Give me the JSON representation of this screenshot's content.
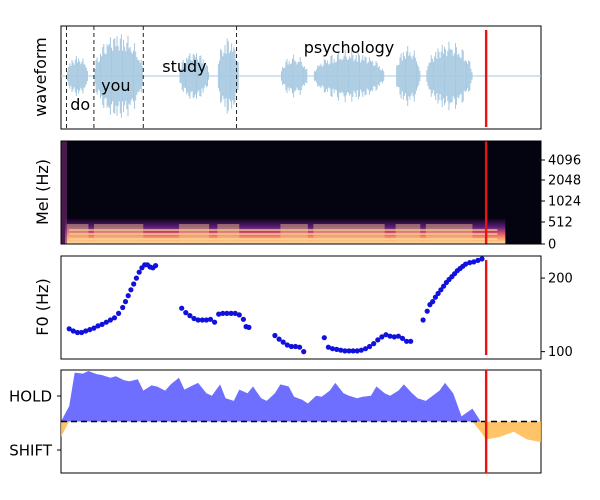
{
  "chart_data": [
    {
      "type": "line",
      "panel": "waveform",
      "ylabel": "waveform",
      "words": [
        {
          "text": "do",
          "t": 0.07
        },
        {
          "text": "you",
          "t": 0.2
        },
        {
          "text": "study",
          "t": 0.45
        },
        {
          "text": "psychology",
          "t": 1.05
        }
      ],
      "word_boundaries": [
        0.02,
        0.12,
        0.3,
        0.64
      ],
      "segments": [
        {
          "start": 0.02,
          "end": 0.1,
          "amp": 0.45
        },
        {
          "start": 0.12,
          "end": 0.3,
          "amp": 0.95
        },
        {
          "start": 0.43,
          "end": 0.54,
          "amp": 0.55
        },
        {
          "start": 0.57,
          "end": 0.65,
          "amp": 0.85
        },
        {
          "start": 0.8,
          "end": 0.9,
          "amp": 0.45
        },
        {
          "start": 0.92,
          "end": 1.18,
          "amp": 0.55
        },
        {
          "start": 1.22,
          "end": 1.31,
          "amp": 0.65
        },
        {
          "start": 1.33,
          "end": 1.5,
          "amp": 0.75
        }
      ],
      "xlim": [
        0,
        1.75
      ],
      "current_time": 1.55,
      "color": "#a6c8e0",
      "marker_color": "#ee1111"
    },
    {
      "type": "heatmap",
      "panel": "mel",
      "ylabel": "Mel (Hz)",
      "yticks": [
        "0",
        "512",
        "1024",
        "2048",
        "4096"
      ],
      "xlim": [
        0,
        1.75
      ],
      "audio_end": 1.62,
      "current_time": 1.55
    },
    {
      "type": "scatter",
      "panel": "f0",
      "ylabel": "F0 (Hz)",
      "yticks": [
        100,
        200
      ],
      "ylim": [
        90,
        230
      ],
      "xlim": [
        0,
        1.75
      ],
      "color": "#1111dd",
      "current_time": 1.55,
      "points": [
        [
          0.03,
          131
        ],
        [
          0.045,
          128
        ],
        [
          0.06,
          126
        ],
        [
          0.075,
          126
        ],
        [
          0.09,
          128
        ],
        [
          0.105,
          130
        ],
        [
          0.12,
          132
        ],
        [
          0.135,
          135
        ],
        [
          0.15,
          137
        ],
        [
          0.165,
          140
        ],
        [
          0.18,
          143
        ],
        [
          0.195,
          146
        ],
        [
          0.21,
          152
        ],
        [
          0.225,
          160
        ],
        [
          0.235,
          168
        ],
        [
          0.245,
          176
        ],
        [
          0.255,
          184
        ],
        [
          0.265,
          192
        ],
        [
          0.275,
          200
        ],
        [
          0.285,
          208
        ],
        [
          0.295,
          214
        ],
        [
          0.305,
          218
        ],
        [
          0.315,
          218
        ],
        [
          0.325,
          215
        ],
        [
          0.335,
          214
        ],
        [
          0.345,
          217
        ],
        [
          0.44,
          159
        ],
        [
          0.455,
          153
        ],
        [
          0.47,
          149
        ],
        [
          0.485,
          145
        ],
        [
          0.5,
          143
        ],
        [
          0.515,
          143
        ],
        [
          0.53,
          143
        ],
        [
          0.545,
          144
        ],
        [
          0.56,
          140
        ],
        [
          0.575,
          151
        ],
        [
          0.59,
          152
        ],
        [
          0.605,
          152
        ],
        [
          0.62,
          152
        ],
        [
          0.635,
          152
        ],
        [
          0.65,
          150
        ],
        [
          0.665,
          144
        ],
        [
          0.675,
          134
        ],
        [
          0.685,
          133
        ],
        [
          0.78,
          122
        ],
        [
          0.795,
          117
        ],
        [
          0.81,
          113
        ],
        [
          0.825,
          109
        ],
        [
          0.84,
          107
        ],
        [
          0.855,
          107
        ],
        [
          0.87,
          106
        ],
        [
          0.885,
          100
        ],
        [
          0.96,
          119
        ],
        [
          0.975,
          106
        ],
        [
          0.99,
          104
        ],
        [
          1.005,
          103
        ],
        [
          1.02,
          102
        ],
        [
          1.035,
          101
        ],
        [
          1.05,
          101
        ],
        [
          1.065,
          101
        ],
        [
          1.08,
          101
        ],
        [
          1.095,
          102
        ],
        [
          1.11,
          104
        ],
        [
          1.125,
          107
        ],
        [
          1.14,
          111
        ],
        [
          1.155,
          116
        ],
        [
          1.17,
          120
        ],
        [
          1.185,
          123
        ],
        [
          1.2,
          121
        ],
        [
          1.215,
          120
        ],
        [
          1.23,
          121
        ],
        [
          1.245,
          118
        ],
        [
          1.26,
          114
        ],
        [
          1.275,
          114
        ],
        [
          1.32,
          143
        ],
        [
          1.335,
          155
        ],
        [
          1.345,
          164
        ],
        [
          1.355,
          168
        ],
        [
          1.365,
          174
        ],
        [
          1.375,
          179
        ],
        [
          1.385,
          184
        ],
        [
          1.395,
          189
        ],
        [
          1.405,
          194
        ],
        [
          1.415,
          198
        ],
        [
          1.425,
          202
        ],
        [
          1.435,
          206
        ],
        [
          1.445,
          210
        ],
        [
          1.455,
          213
        ],
        [
          1.465,
          216
        ],
        [
          1.475,
          219
        ],
        [
          1.49,
          221
        ],
        [
          1.505,
          222
        ],
        [
          1.52,
          224
        ],
        [
          1.535,
          226
        ]
      ]
    },
    {
      "type": "area",
      "panel": "turn",
      "yticks": [
        "HOLD",
        "SHIFT"
      ],
      "ylim": [
        -1,
        1
      ],
      "xlim": [
        0,
        1.75
      ],
      "baseline": 0,
      "current_time": 1.55,
      "hold_color": "#5555ff",
      "shift_color": "#ffb84d",
      "x": [
        0.0,
        0.03,
        0.05,
        0.08,
        0.1,
        0.13,
        0.15,
        0.18,
        0.2,
        0.23,
        0.25,
        0.28,
        0.3,
        0.33,
        0.35,
        0.38,
        0.4,
        0.43,
        0.45,
        0.48,
        0.5,
        0.53,
        0.55,
        0.58,
        0.6,
        0.63,
        0.65,
        0.68,
        0.7,
        0.73,
        0.75,
        0.78,
        0.8,
        0.83,
        0.85,
        0.88,
        0.9,
        0.93,
        0.95,
        0.98,
        1.0,
        1.03,
        1.05,
        1.08,
        1.1,
        1.13,
        1.15,
        1.18,
        1.2,
        1.23,
        1.25,
        1.28,
        1.3,
        1.33,
        1.35,
        1.38,
        1.4,
        1.43,
        1.46,
        1.5,
        1.53,
        1.55,
        1.6,
        1.65,
        1.7,
        1.75
      ],
      "y": [
        -0.3,
        0.3,
        0.95,
        0.93,
        0.98,
        0.92,
        0.9,
        0.85,
        0.88,
        0.8,
        0.78,
        0.82,
        0.6,
        0.7,
        0.68,
        0.6,
        0.72,
        0.85,
        0.62,
        0.7,
        0.75,
        0.55,
        0.5,
        0.72,
        0.45,
        0.4,
        0.62,
        0.55,
        0.68,
        0.45,
        0.4,
        0.55,
        0.72,
        0.68,
        0.48,
        0.42,
        0.35,
        0.5,
        0.48,
        0.6,
        0.75,
        0.55,
        0.5,
        0.45,
        0.48,
        0.5,
        0.68,
        0.55,
        0.5,
        0.6,
        0.72,
        0.55,
        0.45,
        0.4,
        0.48,
        0.6,
        0.75,
        0.55,
        0.1,
        0.25,
        -0.2,
        -0.35,
        -0.3,
        -0.2,
        -0.35,
        -0.4
      ]
    }
  ]
}
